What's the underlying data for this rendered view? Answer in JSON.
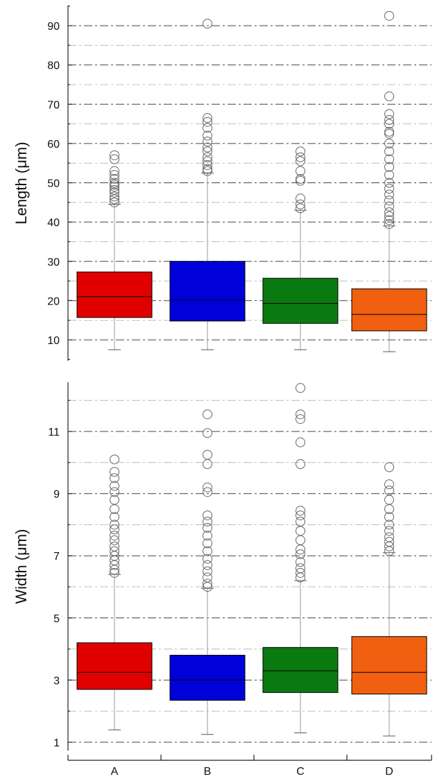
{
  "chart_data": [
    {
      "type": "box",
      "ylabel": "Length (μm)",
      "xlabel": "",
      "ylim": [
        0,
        95
      ],
      "yticks": [
        10,
        20,
        30,
        40,
        50,
        60,
        70,
        80,
        90
      ],
      "grid": true,
      "categories": [
        "A",
        "B",
        "C",
        "D"
      ],
      "colors": [
        "#e00000",
        "#0000d8",
        "#0a7a10",
        "#f06010"
      ],
      "boxes": [
        {
          "min": 7.5,
          "q1": 15.7,
          "median": 21.0,
          "q3": 27.3,
          "max": 44.5,
          "outliers": [
            45.0,
            45.8,
            46.5,
            47.5,
            48.2,
            49.0,
            49.5,
            50.0,
            51.0,
            52.0,
            53.0,
            56.0,
            57.0
          ]
        },
        {
          "min": 7.5,
          "q1": 14.8,
          "median": 20.2,
          "q3": 30.0,
          "max": 52.5,
          "outliers": [
            53.0,
            53.5,
            54.5,
            55.5,
            56.5,
            58.0,
            59.0,
            60.5,
            62.0,
            64.0,
            65.5,
            66.5,
            90.5
          ]
        },
        {
          "min": 7.5,
          "q1": 14.2,
          "median": 19.3,
          "q3": 25.7,
          "max": 43.0,
          "outliers": [
            43.5,
            44.5,
            46.0,
            50.5,
            51.0,
            53.0,
            55.5,
            56.5,
            58.0
          ]
        },
        {
          "min": 7.0,
          "q1": 12.3,
          "median": 16.5,
          "q3": 23.0,
          "max": 39.0,
          "outliers": [
            39.5,
            40.5,
            41.5,
            42.5,
            44.0,
            45.5,
            47.0,
            48.5,
            50.0,
            52.0,
            54.0,
            56.0,
            58.0,
            60.0,
            62.5,
            63.0,
            65.0,
            66.0,
            67.5,
            72.0,
            92.5
          ]
        }
      ]
    },
    {
      "type": "box",
      "ylabel": "Width (μm)",
      "xlabel": "",
      "ylim": [
        0.8,
        12.5
      ],
      "yticks": [
        1,
        3,
        5,
        7,
        9,
        11
      ],
      "grid": true,
      "categories": [
        "A",
        "B",
        "C",
        "D"
      ],
      "colors": [
        "#e00000",
        "#0000d8",
        "#0a7a10",
        "#f06010"
      ],
      "boxes": [
        {
          "min": 1.4,
          "q1": 2.7,
          "median": 3.25,
          "q3": 4.2,
          "max": 6.4,
          "outliers": [
            6.45,
            6.55,
            6.7,
            6.85,
            7.0,
            7.15,
            7.3,
            7.5,
            7.65,
            7.85,
            8.0,
            8.25,
            8.5,
            8.8,
            9.05,
            9.25,
            9.5,
            9.7,
            10.1
          ]
        },
        {
          "min": 1.25,
          "q1": 2.35,
          "median": 3.0,
          "q3": 3.8,
          "max": 5.95,
          "outliers": [
            6.0,
            6.1,
            6.3,
            6.5,
            6.7,
            6.9,
            7.15,
            7.4,
            7.65,
            7.9,
            8.1,
            8.3,
            9.05,
            9.2,
            9.95,
            10.25,
            10.95,
            11.55
          ]
        },
        {
          "min": 1.3,
          "q1": 2.6,
          "median": 3.3,
          "q3": 4.05,
          "max": 6.2,
          "outliers": [
            6.3,
            6.45,
            6.6,
            6.8,
            7.05,
            7.2,
            7.5,
            7.8,
            8.1,
            8.3,
            8.45,
            9.95,
            10.65,
            11.4,
            11.55,
            12.4
          ]
        },
        {
          "min": 1.2,
          "q1": 2.55,
          "median": 3.25,
          "q3": 4.4,
          "max": 7.1,
          "outliers": [
            7.15,
            7.3,
            7.45,
            7.6,
            7.8,
            8.0,
            8.25,
            8.5,
            8.8,
            9.1,
            9.3,
            9.85
          ]
        }
      ]
    }
  ]
}
